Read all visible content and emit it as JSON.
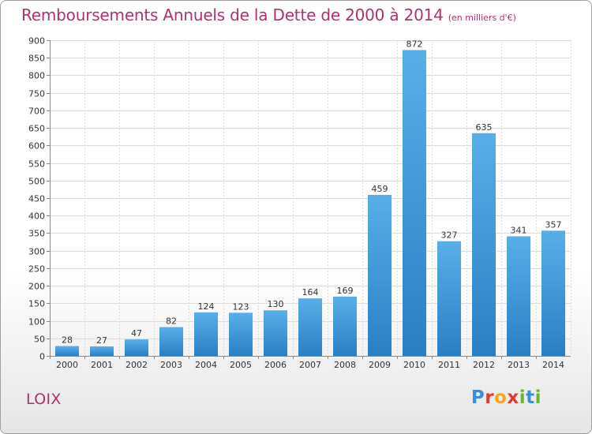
{
  "header": {
    "title": "Remboursements Annuels de la Dette de 2000 à 2014",
    "subtitle": "(en milliers d'€)"
  },
  "place_name": "LOIX",
  "brand": {
    "letters": [
      "P",
      "r",
      "o",
      "x",
      "i",
      "t",
      "i"
    ],
    "colors": [
      "#3a8fd8",
      "#e23b2e",
      "#f2a81d",
      "#e23b2e",
      "#6ab42d",
      "#3a8fd8",
      "#6ab42d"
    ]
  },
  "chart_data": {
    "type": "bar",
    "categories": [
      "2000",
      "2001",
      "2002",
      "2003",
      "2004",
      "2005",
      "2006",
      "2007",
      "2008",
      "2009",
      "2010",
      "2011",
      "2012",
      "2013",
      "2014"
    ],
    "values": [
      28,
      27,
      47,
      82,
      124,
      123,
      130,
      164,
      169,
      459,
      872,
      327,
      635,
      341,
      357
    ],
    "data_labels": [
      "28",
      "27",
      "47",
      "82",
      "124",
      "123",
      "130",
      "164",
      "169",
      "459",
      "872",
      "327",
      "635",
      "341",
      "357"
    ],
    "ylim": [
      0,
      900
    ],
    "yticks": [
      0,
      50,
      100,
      150,
      200,
      250,
      300,
      350,
      400,
      450,
      500,
      550,
      600,
      650,
      700,
      750,
      800,
      850,
      900
    ],
    "grid": true,
    "bar_color_top": "#5aaee8",
    "bar_color_bottom": "#2a7fc4"
  }
}
